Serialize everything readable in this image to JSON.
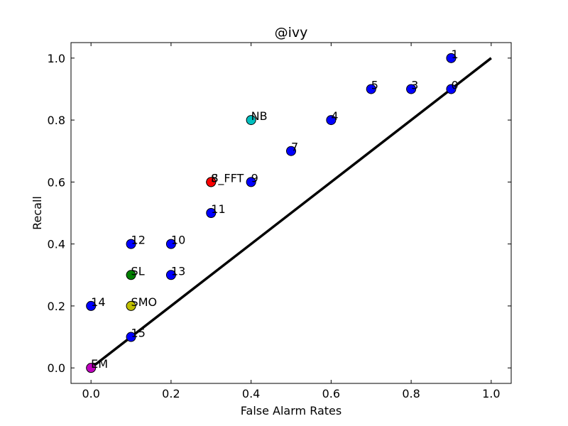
{
  "chart_data": {
    "type": "scatter",
    "title": "@ivy",
    "xlabel": "False Alarm Rates",
    "ylabel": "Recall",
    "xlim": [
      -0.05,
      1.05
    ],
    "ylim": [
      -0.05,
      1.05
    ],
    "xticks": [
      0.0,
      0.2,
      0.4,
      0.6,
      0.8,
      1.0
    ],
    "yticks": [
      0.0,
      0.2,
      0.4,
      0.6,
      0.8,
      1.0
    ],
    "tick_labels": {
      "x": [
        "0.0",
        "0.2",
        "0.4",
        "0.6",
        "0.8",
        "1.0"
      ],
      "y": [
        "0.0",
        "0.2",
        "0.4",
        "0.6",
        "0.8",
        "1.0"
      ]
    },
    "grid": false,
    "reference_line": {
      "x": [
        0.0,
        1.0
      ],
      "y": [
        0.0,
        1.0
      ],
      "color": "#000000"
    },
    "points": [
      {
        "label": "1",
        "x": 0.9,
        "y": 1.0,
        "color": "#0000ff"
      },
      {
        "label": "5",
        "x": 0.7,
        "y": 0.9,
        "color": "#0000ff"
      },
      {
        "label": "3",
        "x": 0.8,
        "y": 0.9,
        "color": "#0000ff"
      },
      {
        "label": "0",
        "x": 0.9,
        "y": 0.9,
        "color": "#0000ff"
      },
      {
        "label": "NB",
        "x": 0.4,
        "y": 0.8,
        "color": "#00bfbf"
      },
      {
        "label": "4",
        "x": 0.6,
        "y": 0.8,
        "color": "#0000ff"
      },
      {
        "label": "7",
        "x": 0.5,
        "y": 0.7,
        "color": "#0000ff"
      },
      {
        "label": "8",
        "x": 0.3,
        "y": 0.6,
        "color": "#0000ff"
      },
      {
        "label": "S_FFT",
        "x": 0.3,
        "y": 0.6,
        "color": "#ff0000"
      },
      {
        "label": "9",
        "x": 0.4,
        "y": 0.6,
        "color": "#0000ff"
      },
      {
        "label": "11",
        "x": 0.3,
        "y": 0.5,
        "color": "#0000ff"
      },
      {
        "label": "12",
        "x": 0.1,
        "y": 0.4,
        "color": "#0000ff"
      },
      {
        "label": "10",
        "x": 0.2,
        "y": 0.4,
        "color": "#0000ff"
      },
      {
        "label": "SL",
        "x": 0.1,
        "y": 0.3,
        "color": "#008000"
      },
      {
        "label": "13",
        "x": 0.2,
        "y": 0.3,
        "color": "#0000ff"
      },
      {
        "label": "14",
        "x": 0.0,
        "y": 0.2,
        "color": "#0000ff"
      },
      {
        "label": "SMO",
        "x": 0.1,
        "y": 0.2,
        "color": "#bfbf00"
      },
      {
        "label": "15",
        "x": 0.1,
        "y": 0.1,
        "color": "#0000ff"
      },
      {
        "label": "EM",
        "x": 0.0,
        "y": 0.0,
        "color": "#bf00bf"
      }
    ]
  }
}
